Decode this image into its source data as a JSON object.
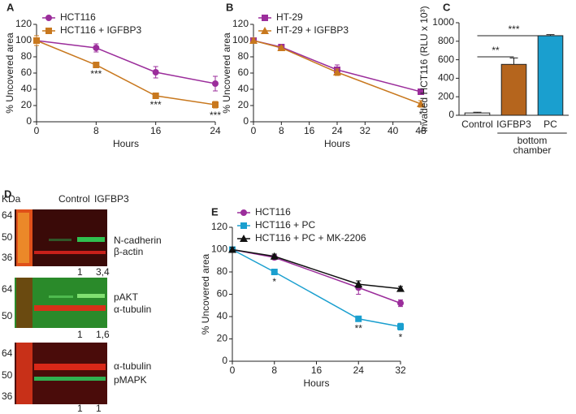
{
  "chart_data": [
    {
      "type": "line",
      "panel": "A",
      "xlabel": "Hours",
      "ylabel": "% Uncovered area",
      "x": [
        0,
        8,
        16,
        24
      ],
      "xlim": [
        0,
        24
      ],
      "xticks": [
        0,
        8,
        16,
        24
      ],
      "ylim": [
        0,
        120
      ],
      "yticks": [
        0,
        20,
        40,
        60,
        80,
        100,
        120
      ],
      "series": [
        {
          "name": "HCT116",
          "color": "#9b2d9b",
          "marker": "circle",
          "values": [
            100,
            91,
            61,
            47
          ],
          "errors": [
            6,
            5,
            7,
            9
          ]
        },
        {
          "name": "HCT116 + IGFBP3",
          "color": "#c8781e",
          "marker": "square",
          "values": [
            100,
            70,
            32,
            21
          ],
          "errors": [
            6,
            2,
            2,
            4
          ]
        }
      ],
      "annotations": [
        {
          "text": "***",
          "x": 8
        },
        {
          "text": "***",
          "x": 16
        },
        {
          "text": "***",
          "x": 24
        }
      ]
    },
    {
      "type": "line",
      "panel": "B",
      "xlabel": "Hours",
      "ylabel": "% Uncovered area",
      "x": [
        0,
        8,
        24,
        48
      ],
      "xlim": [
        0,
        48
      ],
      "xticks": [
        0,
        8,
        16,
        24,
        32,
        40,
        48
      ],
      "ylim": [
        0,
        120
      ],
      "yticks": [
        0,
        20,
        40,
        60,
        80,
        100,
        120
      ],
      "series": [
        {
          "name": "HT-29",
          "color": "#9b2d9b",
          "marker": "square",
          "values": [
            100,
            92,
            64,
            37
          ],
          "errors": [
            3,
            2,
            6,
            3
          ]
        },
        {
          "name": "HT-29 + IGFBP3",
          "color": "#c8781e",
          "marker": "triangle",
          "values": [
            100,
            91,
            61,
            22
          ],
          "errors": [
            3,
            2,
            4,
            4
          ]
        }
      ],
      "annotations": [
        {
          "text": "*",
          "x": 48
        }
      ]
    },
    {
      "type": "bar",
      "panel": "C",
      "ylabel": "Invaded HCT116 (RLU x 10³)",
      "categories": [
        "Control",
        "IGFBP3",
        "PC"
      ],
      "values": [
        25,
        550,
        860
      ],
      "errors": [
        8,
        70,
        12
      ],
      "colors": [
        "#ffffff",
        "#b5651d",
        "#1a9fcf"
      ],
      "ylim": [
        0,
        1000
      ],
      "yticks": [
        0,
        200,
        400,
        600,
        800,
        1000
      ],
      "group_label": [
        "bottom",
        "chamber"
      ],
      "comparisons": [
        {
          "between": [
            "Control",
            "IGFBP3"
          ],
          "label": "**"
        },
        {
          "between": [
            "Control",
            "PC"
          ],
          "label": "***"
        }
      ]
    },
    {
      "type": "line",
      "panel": "E",
      "xlabel": "Hours",
      "ylabel": "% Uncovered area",
      "x": [
        0,
        8,
        24,
        32
      ],
      "xlim": [
        0,
        32
      ],
      "xticks": [
        0,
        8,
        16,
        24,
        32
      ],
      "ylim": [
        0,
        120
      ],
      "yticks": [
        0,
        20,
        40,
        60,
        80,
        100,
        120
      ],
      "series": [
        {
          "name": "HCT116",
          "color": "#9b2d9b",
          "marker": "circle",
          "values": [
            100,
            93,
            66,
            52
          ],
          "errors": [
            2,
            2,
            6,
            3
          ]
        },
        {
          "name": "HCT116 + PC",
          "color": "#1a9fcf",
          "marker": "square",
          "values": [
            100,
            80,
            38,
            31
          ],
          "errors": [
            2,
            2,
            2,
            3
          ]
        },
        {
          "name": "HCT116 + PC + MK-2206",
          "color": "#111111",
          "marker": "triangle",
          "values": [
            100,
            94,
            69,
            65
          ],
          "errors": [
            2,
            2,
            3,
            2
          ]
        }
      ],
      "annotations": [
        {
          "text": "*",
          "x": 8
        },
        {
          "text": "**",
          "x": 24
        },
        {
          "text": "*",
          "x": 32
        }
      ]
    }
  ],
  "blot": {
    "panel": "D",
    "unit": "KDa",
    "lanes": [
      "Control",
      "IGFBP3"
    ],
    "panels": [
      {
        "markers": [
          64,
          50,
          36
        ],
        "bands": [
          "N-cadherin",
          "β-actin"
        ],
        "quant": [
          "1",
          "3,4"
        ]
      },
      {
        "markers": [
          64,
          50
        ],
        "bands": [
          "pAKT",
          "α-tubulin"
        ],
        "quant": [
          "1",
          "1,6"
        ]
      },
      {
        "markers": [
          64,
          50,
          36
        ],
        "bands": [
          "α-tubulin",
          "pMAPK"
        ],
        "quant": [
          "1",
          "1"
        ]
      }
    ]
  }
}
